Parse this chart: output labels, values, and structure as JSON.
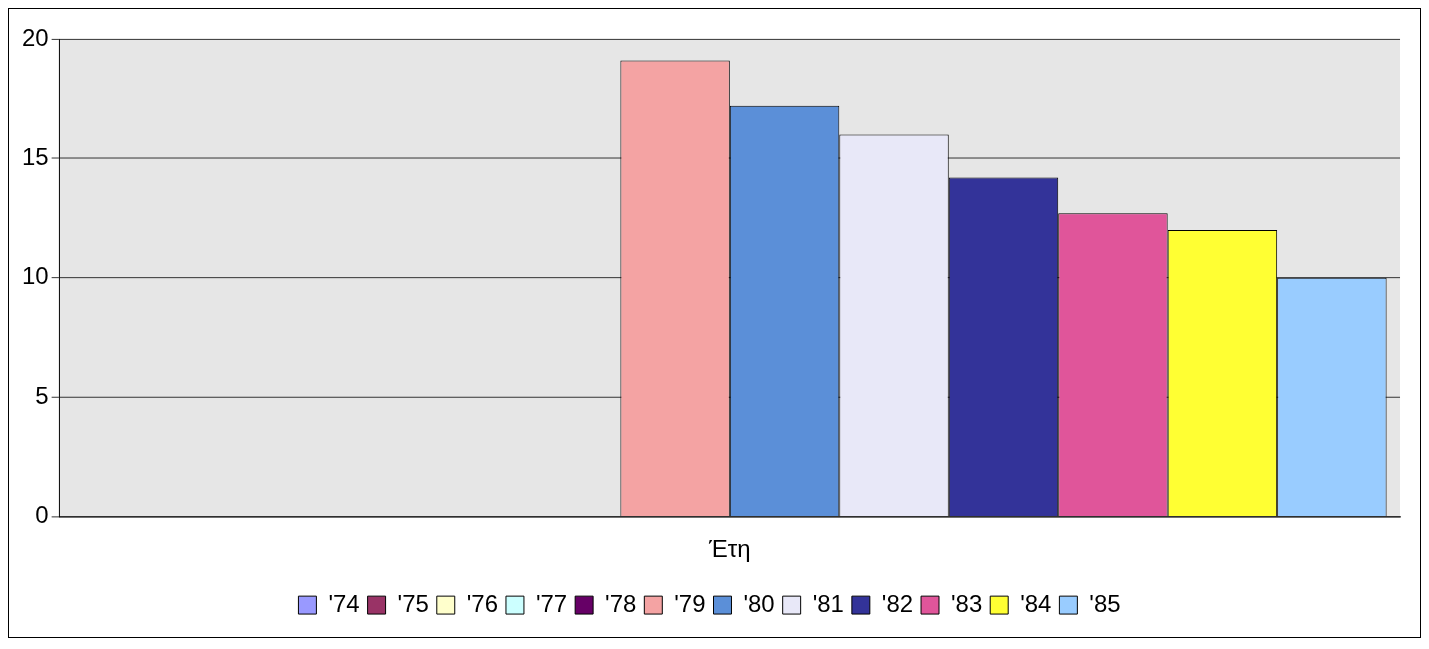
{
  "chart_data": {
    "type": "bar",
    "categories": [
      "Έτη"
    ],
    "series": [
      {
        "name": "'74",
        "color": "#9999ff",
        "values": [
          null
        ]
      },
      {
        "name": "'75",
        "color": "#993366",
        "values": [
          null
        ]
      },
      {
        "name": "'76",
        "color": "#ffffcc",
        "values": [
          null
        ]
      },
      {
        "name": "'77",
        "color": "#ccffff",
        "values": [
          null
        ]
      },
      {
        "name": "'78",
        "color": "#660066",
        "values": [
          null
        ]
      },
      {
        "name": "'79",
        "color": "#f4a3a3",
        "values": [
          19.1
        ]
      },
      {
        "name": "'80",
        "color": "#5b8fd8",
        "values": [
          17.2
        ]
      },
      {
        "name": "'81",
        "color": "#e8e8f8",
        "values": [
          16.0
        ]
      },
      {
        "name": "'82",
        "color": "#333399",
        "values": [
          14.2
        ]
      },
      {
        "name": "'83",
        "color": "#e0559a",
        "values": [
          12.7
        ]
      },
      {
        "name": "'84",
        "color": "#ffff33",
        "values": [
          12.0
        ]
      },
      {
        "name": "'85",
        "color": "#99ccff",
        "values": [
          10.0
        ]
      }
    ],
    "ylim": [
      0,
      20
    ],
    "yticks": [
      0,
      5,
      10,
      15,
      20
    ],
    "grid": "y",
    "legend": "bottom"
  }
}
